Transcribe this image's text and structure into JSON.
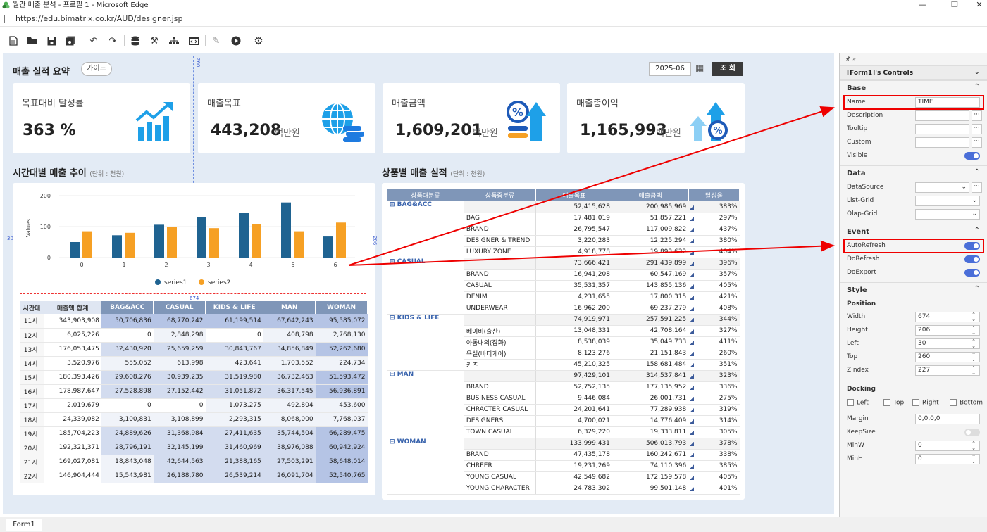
{
  "window": {
    "title": "월간 매출 분석 - 프로필 1 - Microsoft Edge",
    "minimize": "—",
    "maximize": "❐",
    "close": "✕"
  },
  "address": {
    "url": "https://edu.bimatrix.co.kr/AUD/designer.jsp"
  },
  "toolbar": {
    "icons": [
      "new-file",
      "open-folder",
      "save",
      "save-all",
      "undo",
      "redo",
      "database",
      "tools",
      "hierarchy",
      "script",
      "edit",
      "run",
      "settings"
    ]
  },
  "report": {
    "title": "매출 실적 요약",
    "guide_label": "가이드",
    "date_value": "2025-06",
    "search_label": "조 회",
    "kpis": [
      {
        "label": "목표대비 달성률",
        "value": "363 %",
        "unit": ""
      },
      {
        "label": "매출목표",
        "value": "443,208",
        "unit": "백만원"
      },
      {
        "label": "매출금액",
        "value": "1,609,201",
        "unit": "백만원"
      },
      {
        "label": "매출총이익",
        "value": "1,165,993",
        "unit": "백만원"
      }
    ],
    "time_section": {
      "title": "시간대별 매출 추이",
      "unit": "(단위 : 천원)"
    },
    "product_section": {
      "title": "상품별 매출 실적",
      "unit": "(단위 : 천원)"
    },
    "guides": {
      "top_value": "260",
      "left_value": "30",
      "height_value": "206",
      "width_value": "674"
    }
  },
  "chart_data": {
    "type": "bar",
    "categories": [
      "0",
      "1",
      "2",
      "3",
      "4",
      "5",
      "6"
    ],
    "ylabel": "Values",
    "ylim": [
      0,
      200
    ],
    "yticks": [
      "0",
      "100",
      "200"
    ],
    "series": [
      {
        "name": "series1",
        "color": "#1f6391",
        "values": [
          50,
          72,
          106,
          130,
          145,
          178,
          68
        ]
      },
      {
        "name": "series2",
        "color": "#f6a024",
        "values": [
          85,
          80,
          100,
          95,
          107,
          85,
          113
        ]
      }
    ],
    "legend": "bottom",
    "grid": true
  },
  "time_table": {
    "headers": [
      "시간대",
      "매출액 합계",
      "BAG&ACC",
      "CASUAL",
      "KIDS & LIFE",
      "MAN",
      "WOMAN"
    ],
    "rows": [
      [
        "11시",
        "343,903,908",
        "50,706,836",
        "68,770,242",
        "61,199,514",
        "67,642,243",
        "95,585,072"
      ],
      [
        "12시",
        "6,025,226",
        "0",
        "2,848,298",
        "0",
        "408,798",
        "2,768,130"
      ],
      [
        "13시",
        "176,053,475",
        "32,430,920",
        "25,659,259",
        "30,843,767",
        "34,856,849",
        "52,262,680"
      ],
      [
        "14시",
        "3,520,976",
        "555,052",
        "613,998",
        "423,641",
        "1,703,552",
        "224,734"
      ],
      [
        "15시",
        "180,393,426",
        "29,608,276",
        "30,939,235",
        "31,519,980",
        "36,732,463",
        "51,593,472"
      ],
      [
        "16시",
        "178,987,647",
        "27,528,898",
        "27,152,442",
        "31,051,872",
        "36,317,545",
        "56,936,891"
      ],
      [
        "17시",
        "2,019,679",
        "0",
        "0",
        "1,073,275",
        "492,804",
        "453,600"
      ],
      [
        "18시",
        "24,339,082",
        "3,100,831",
        "3,108,899",
        "2,293,315",
        "8,068,000",
        "7,768,037"
      ],
      [
        "19시",
        "185,704,223",
        "24,889,626",
        "31,368,984",
        "27,411,635",
        "35,744,504",
        "66,289,475"
      ],
      [
        "20시",
        "192,321,371",
        "28,796,191",
        "32,145,199",
        "31,460,969",
        "38,976,088",
        "60,942,924"
      ],
      [
        "21시",
        "169,027,081",
        "18,843,048",
        "42,644,563",
        "21,388,165",
        "27,503,291",
        "58,648,014"
      ],
      [
        "22시",
        "146,904,444",
        "15,543,981",
        "26,188,780",
        "26,539,214",
        "26,091,704",
        "52,540,765"
      ]
    ]
  },
  "product_table": {
    "headers": [
      "상품대분류",
      "상품중분류",
      "매출목표",
      "매출금액",
      "달성율"
    ],
    "groups": [
      {
        "name": "BAG&ACC",
        "total": [
          "52,415,628",
          "200,985,969",
          "383%"
        ],
        "items": [
          [
            "BAG",
            "17,481,019",
            "51,857,221",
            "297%"
          ],
          [
            "BRAND",
            "26,795,547",
            "117,009,822",
            "437%"
          ],
          [
            "DESIGNER & TREND",
            "3,220,283",
            "12,225,294",
            "380%"
          ],
          [
            "LUXURY ZONE",
            "4,918,778",
            "19,893,632",
            "404%"
          ]
        ]
      },
      {
        "name": "CASUAL",
        "total": [
          "73,666,421",
          "291,439,899",
          "396%"
        ],
        "items": [
          [
            "BRAND",
            "16,941,208",
            "60,547,169",
            "357%"
          ],
          [
            "CASUAL",
            "35,531,357",
            "143,855,136",
            "405%"
          ],
          [
            "DENIM",
            "4,231,655",
            "17,800,315",
            "421%"
          ],
          [
            "UNDERWEAR",
            "16,962,200",
            "69,237,279",
            "408%"
          ]
        ]
      },
      {
        "name": "KIDS & LIFE",
        "total": [
          "74,919,971",
          "257,591,225",
          "344%"
        ],
        "items": [
          [
            "베이비(출산)",
            "13,048,331",
            "42,708,164",
            "327%"
          ],
          [
            "아동내의(잡화)",
            "8,538,039",
            "35,049,733",
            "411%"
          ],
          [
            "욕실(바디케어)",
            "8,123,276",
            "21,151,843",
            "260%"
          ],
          [
            "키즈",
            "45,210,325",
            "158,681,484",
            "351%"
          ]
        ]
      },
      {
        "name": "MAN",
        "total": [
          "97,429,101",
          "314,537,841",
          "323%"
        ],
        "items": [
          [
            "BRAND",
            "52,752,135",
            "177,135,952",
            "336%"
          ],
          [
            "BUSINESS CASUAL",
            "9,446,084",
            "26,001,731",
            "275%"
          ],
          [
            "CHRACTER CASUAL",
            "24,201,641",
            "77,289,938",
            "319%"
          ],
          [
            "DESIGNERS",
            "4,700,021",
            "14,776,409",
            "314%"
          ],
          [
            "TOWN CASUAL",
            "6,329,220",
            "19,333,811",
            "305%"
          ]
        ]
      },
      {
        "name": "WOMAN",
        "total": [
          "133,999,431",
          "506,013,793",
          "378%"
        ],
        "items": [
          [
            "BRAND",
            "47,435,178",
            "160,242,671",
            "338%"
          ],
          [
            "CHREER",
            "19,231,269",
            "74,110,396",
            "385%"
          ],
          [
            "YOUNG CASUAL",
            "42,549,682",
            "172,159,578",
            "405%"
          ],
          [
            "YOUNG CHARACTER",
            "24,783,302",
            "99,501,148",
            "401%"
          ]
        ]
      }
    ]
  },
  "properties": {
    "pin": "🖈 »",
    "header": "[Form1]'s Controls",
    "sections": {
      "base": "Base",
      "data": "Data",
      "event": "Event",
      "style": "Style"
    },
    "base": {
      "name_label": "Name",
      "name_value": "TIME",
      "description": "Description",
      "tooltip": "Tooltip",
      "custom": "Custom",
      "visible": "Visible"
    },
    "data": {
      "datasource": "DataSource",
      "listgrid": "List-Grid",
      "olapgrid": "Olap-Grid"
    },
    "event": {
      "autorefresh": "AutoRefresh",
      "dorefresh": "DoRefresh",
      "doexport": "DoExport"
    },
    "style": {
      "position": "Position",
      "width_label": "Width",
      "width": "674",
      "height_label": "Height",
      "height": "206",
      "left_label": "Left",
      "left": "30",
      "top_label": "Top",
      "top": "260",
      "zindex_label": "ZIndex",
      "zindex": "227",
      "docking": "Docking",
      "dock_left": "Left",
      "dock_top": "Top",
      "dock_right": "Right",
      "dock_bottom": "Bottom",
      "margin_label": "Margin",
      "margin": "0,0,0,0",
      "keepsize": "KeepSize",
      "minw_label": "MinW",
      "minw": "0",
      "minh_label": "MinH",
      "minh": "0"
    }
  },
  "bottom": {
    "tab": "Form1"
  }
}
